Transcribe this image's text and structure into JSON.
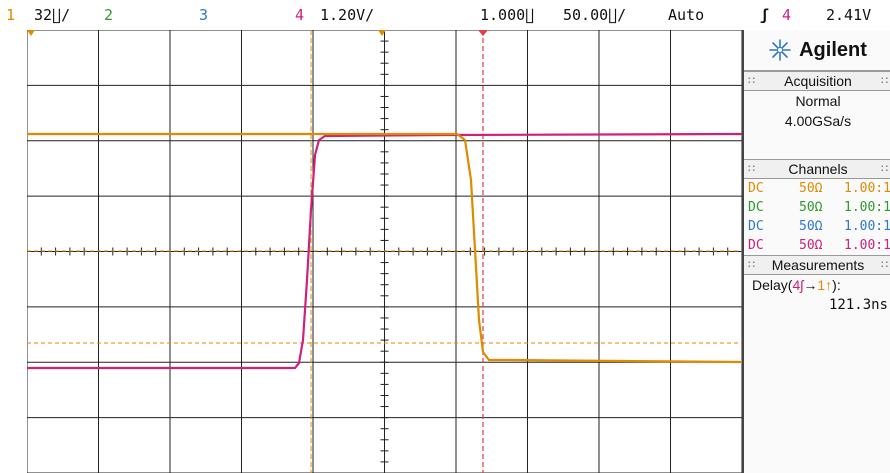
{
  "topbar": {
    "ch1_marker": "1",
    "ch1_scale": "32∐/",
    "ch2_label": "2",
    "ch3_label": "3",
    "ch4_label": "4",
    "ch4_scale": "1.20V/",
    "time_offset": "1.000∐",
    "time_scale": "50.00∐/",
    "trigger_mode": "Auto",
    "trigger_slope_icon": "rising-edge-icon",
    "trigger_source": "4",
    "trigger_level": "2.41V"
  },
  "panel": {
    "brand": "Agilent",
    "acquisition": {
      "title": "Acquisition",
      "mode": "Normal",
      "rate": "4.00GSa/s"
    },
    "channels": {
      "title": "Channels",
      "rows": [
        {
          "coupling": "DC",
          "impedance": "50Ω",
          "scale": "1.00:1",
          "color": "#e08a00"
        },
        {
          "coupling": "DC",
          "impedance": "50Ω",
          "scale": "1.00:1",
          "color": "#2e9a2e"
        },
        {
          "coupling": "DC",
          "impedance": "50Ω",
          "scale": "1.00:1",
          "color": "#2f78c8"
        },
        {
          "coupling": "DC",
          "impedance": "50Ω",
          "scale": "1.00:1",
          "color": "#d0207a"
        }
      ]
    },
    "measurements": {
      "title": "Measurements",
      "label_prefix": "Delay(",
      "label_src": "4ʃ",
      "arrow": "→",
      "label_dst": "1↑",
      "label_suffix": "):",
      "value": "121.3ns"
    }
  },
  "colors": {
    "ch1": "#e08a00",
    "ch4": "#d0207a",
    "trigger": "#e0403a",
    "grid": "#222222"
  }
}
